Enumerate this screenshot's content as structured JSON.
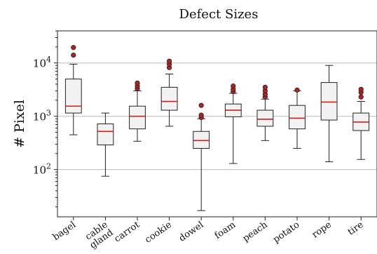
{
  "chart_data": {
    "type": "box",
    "title": "Defect Sizes",
    "ylabel": "# Pixel",
    "yscale": "log",
    "ylim": [
      13,
      40000
    ],
    "grid": "y-major",
    "yticks": [
      {
        "value": 100,
        "base": "10",
        "exp": "2"
      },
      {
        "value": 1000,
        "base": "10",
        "exp": "3"
      },
      {
        "value": 10000,
        "base": "10",
        "exp": "4"
      }
    ],
    "categories": [
      {
        "label": [
          "bagel"
        ],
        "whislo": 450,
        "q1": 1150,
        "med": 1550,
        "q3": 5000,
        "whishi": 9500,
        "fliers": [
          14000,
          19500
        ]
      },
      {
        "label": [
          "cable",
          "gland"
        ],
        "whislo": 75,
        "q1": 290,
        "med": 520,
        "q3": 720,
        "whishi": 1150,
        "fliers": []
      },
      {
        "label": [
          "carrot"
        ],
        "whislo": 340,
        "q1": 580,
        "med": 1000,
        "q3": 1550,
        "whishi": 3000,
        "fliers": [
          3300,
          3700,
          4200
        ]
      },
      {
        "label": [
          "cookie"
        ],
        "whislo": 650,
        "q1": 1300,
        "med": 1900,
        "q3": 3500,
        "whishi": 6200,
        "fliers": [
          8200,
          9500,
          10800
        ]
      },
      {
        "label": [
          "dowel"
        ],
        "whislo": 17,
        "q1": 250,
        "med": 350,
        "q3": 520,
        "whishi": 900,
        "fliers": [
          950,
          1050,
          1600
        ]
      },
      {
        "label": [
          "foam"
        ],
        "whislo": 130,
        "q1": 980,
        "med": 1300,
        "q3": 1700,
        "whishi": 2700,
        "fliers": [
          2900,
          3200,
          3700
        ]
      },
      {
        "label": [
          "peach"
        ],
        "whislo": 350,
        "q1": 650,
        "med": 880,
        "q3": 1300,
        "whishi": 2100,
        "fliers": [
          2300,
          2600,
          3000,
          3500
        ]
      },
      {
        "label": [
          "potato"
        ],
        "whislo": 250,
        "q1": 580,
        "med": 920,
        "q3": 1600,
        "whishi": 3000,
        "fliers": [
          3100
        ]
      },
      {
        "label": [
          "rope"
        ],
        "whislo": 140,
        "q1": 850,
        "med": 1850,
        "q3": 4300,
        "whishi": 9000,
        "fliers": []
      },
      {
        "label": [
          "tire"
        ],
        "whislo": 155,
        "q1": 540,
        "med": 780,
        "q3": 1150,
        "whishi": 1900,
        "fliers": [
          2300,
          2800,
          3200
        ]
      }
    ]
  }
}
